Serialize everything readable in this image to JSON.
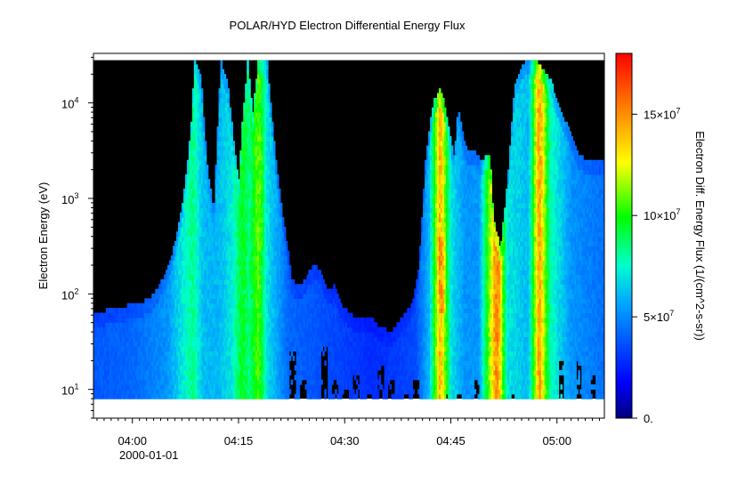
{
  "chart_data": {
    "type": "heatmap",
    "title": "POLAR/HYD  Electron Differential Energy Flux",
    "xlabel": "",
    "ylabel": "Electron Energy (eV)",
    "colorbar_label": "Electron Diff. Energy Flux (1/(cm^2-s-sr))",
    "x_date": "2000-01-01",
    "x_tick_labels": [
      "04:00",
      "04:15",
      "04:30",
      "04:45",
      "05:00"
    ],
    "x_tick_minutes": [
      240,
      255,
      270,
      285,
      300
    ],
    "xlim_minutes": [
      234.5,
      306.7
    ],
    "y_scale": "log",
    "ylim": [
      5.0,
      33000
    ],
    "y_tick_values": [
      10,
      100,
      1000,
      10000
    ],
    "y_tick_base": "10",
    "y_tick_exponents": [
      "1",
      "2",
      "3",
      "4"
    ],
    "colorbar_range": [
      0,
      180000000
    ],
    "colorbar_ticks": [
      {
        "value": 0,
        "label": "0."
      },
      {
        "value": 50000000,
        "base": "5×10",
        "exp": "7"
      },
      {
        "value": 100000000,
        "base": "10×10",
        "exp": "7"
      },
      {
        "value": 150000000,
        "base": "15×10",
        "exp": "7"
      }
    ],
    "colors": {
      "no_data": "#000000",
      "colormap": [
        "#000080",
        "#0000ff",
        "#00aaff",
        "#00ffcc",
        "#00ff00",
        "#ffff00",
        "#ff8000",
        "#ff0000"
      ]
    },
    "data_energy_range_eV": [
      8,
      28000
    ],
    "upper_envelope_eV": [
      [
        234.5,
        60
      ],
      [
        237,
        70
      ],
      [
        239,
        75
      ],
      [
        241,
        80
      ],
      [
        242.5,
        90
      ],
      [
        244,
        130
      ],
      [
        245.5,
        250
      ],
      [
        246.5,
        500
      ],
      [
        247.5,
        1500
      ],
      [
        248.3,
        6000
      ],
      [
        248.8,
        28000
      ],
      [
        249.7,
        18000
      ],
      [
        250.5,
        2500
      ],
      [
        251.5,
        700
      ],
      [
        252.5,
        28000
      ],
      [
        253.5,
        15000
      ],
      [
        254.5,
        3000
      ],
      [
        255,
        1500
      ],
      [
        255.5,
        6000
      ],
      [
        256.3,
        28000
      ],
      [
        257,
        8000
      ],
      [
        257.8,
        28000
      ],
      [
        259,
        28000
      ],
      [
        260,
        4000
      ],
      [
        260.8,
        1200
      ],
      [
        261.5,
        500
      ],
      [
        262.5,
        150
      ],
      [
        263.5,
        120
      ],
      [
        264.5,
        150
      ],
      [
        265.5,
        200
      ],
      [
        266.5,
        180
      ],
      [
        267.5,
        110
      ],
      [
        268.5,
        120
      ],
      [
        269.5,
        75
      ],
      [
        270.5,
        65
      ],
      [
        272,
        55
      ],
      [
        273.5,
        60
      ],
      [
        275,
        45
      ],
      [
        276.5,
        40
      ],
      [
        278,
        55
      ],
      [
        279.5,
        80
      ],
      [
        280.5,
        200
      ],
      [
        281.5,
        3000
      ],
      [
        282.5,
        10000
      ],
      [
        283.5,
        15000
      ],
      [
        284.5,
        7000
      ],
      [
        285.5,
        2500
      ],
      [
        286,
        9000
      ],
      [
        287,
        3500
      ],
      [
        288.5,
        3000
      ],
      [
        289.5,
        2500
      ],
      [
        290.5,
        3000
      ],
      [
        291,
        600
      ],
      [
        292,
        300
      ],
      [
        293,
        1500
      ],
      [
        294,
        15000
      ],
      [
        295.5,
        28000
      ],
      [
        297,
        28000
      ],
      [
        298,
        23000
      ],
      [
        299,
        18000
      ],
      [
        300,
        11000
      ],
      [
        301,
        7000
      ],
      [
        302,
        4500
      ],
      [
        303,
        3000
      ],
      [
        304.5,
        2400
      ],
      [
        306.7,
        2400
      ]
    ],
    "intensity_profile": [
      [
        234.5,
        0.22
      ],
      [
        240,
        0.24
      ],
      [
        245,
        0.3
      ],
      [
        248.5,
        0.48
      ],
      [
        250,
        0.35
      ],
      [
        252,
        0.34
      ],
      [
        254,
        0.4
      ],
      [
        255.5,
        0.55
      ],
      [
        256.5,
        0.48
      ],
      [
        257.8,
        0.62
      ],
      [
        259,
        0.4
      ],
      [
        262,
        0.24
      ],
      [
        268,
        0.2
      ],
      [
        274,
        0.16
      ],
      [
        280,
        0.2
      ],
      [
        282,
        0.35
      ],
      [
        283.5,
        0.82
      ],
      [
        285,
        0.4
      ],
      [
        287,
        0.3
      ],
      [
        289,
        0.3
      ],
      [
        291.5,
        0.88
      ],
      [
        293,
        0.4
      ],
      [
        296,
        0.35
      ],
      [
        297.5,
        0.85
      ],
      [
        299,
        0.45
      ],
      [
        302,
        0.3
      ],
      [
        306.7,
        0.25
      ]
    ],
    "hotspots": [
      {
        "t": 283.5,
        "lo": 60,
        "hi": 400,
        "level": 0.85
      },
      {
        "t": 291.5,
        "lo": 30,
        "hi": 300,
        "level": 0.85
      },
      {
        "t": 297.5,
        "lo": 1000,
        "hi": 10000,
        "level": 0.78
      },
      {
        "t": 257.8,
        "lo": 300,
        "hi": 5000,
        "level": 0.62
      },
      {
        "t": 255.5,
        "lo": 1500,
        "hi": 6000,
        "level": 0.55
      }
    ],
    "low_energy_gaps_eV": [
      [
        262.5,
        25
      ],
      [
        264,
        12
      ],
      [
        267,
        30
      ],
      [
        268.5,
        12
      ],
      [
        270,
        10
      ],
      [
        271.5,
        15
      ],
      [
        273.5,
        9
      ],
      [
        275,
        18
      ],
      [
        276.5,
        12
      ],
      [
        278.5,
        9
      ],
      [
        280,
        12
      ],
      [
        284.5,
        9
      ],
      [
        286,
        9
      ],
      [
        288.5,
        12
      ],
      [
        293.5,
        9
      ],
      [
        300.5,
        20
      ],
      [
        303,
        20
      ],
      [
        305,
        15
      ]
    ]
  }
}
